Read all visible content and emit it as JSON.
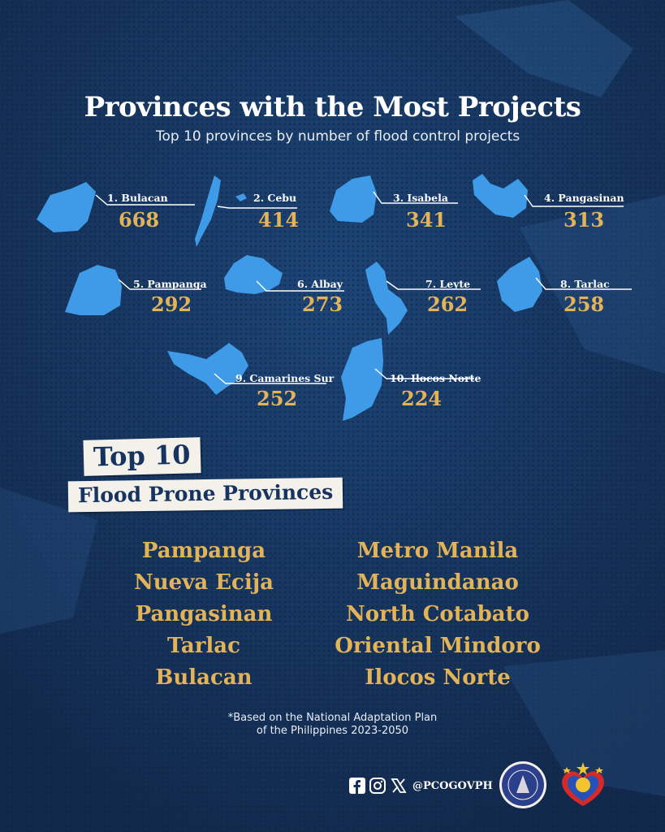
{
  "title": "Provinces with the Most Projects",
  "subtitle": "Top 10 provinces by number of flood control projects",
  "provinces": [
    {
      "label": "1. Bulacan",
      "count": "668"
    },
    {
      "label": "2. Cebu",
      "count": "414"
    },
    {
      "label": "3. Isabela",
      "count": "341"
    },
    {
      "label": "4. Pangasinan",
      "count": "313"
    },
    {
      "label": "5. Pampanga",
      "count": "292"
    },
    {
      "label": "6. Albay",
      "count": "273"
    },
    {
      "label": "7. Leyte",
      "count": "262"
    },
    {
      "label": "8. Tarlac",
      "count": "258"
    },
    {
      "label": "9. Camarines Sur",
      "count": "252"
    },
    {
      "label": "10. Ilocos Norte",
      "count": "224"
    }
  ],
  "flood_section": {
    "badge_line1": "Top 10",
    "badge_line2": "Flood Prone Provinces",
    "left_column": [
      "Pampanga",
      "Nueva Ecija",
      "Pangasinan",
      "Tarlac",
      "Bulacan"
    ],
    "right_column": [
      "Metro Manila",
      "Maguindanao",
      "North Cotabato",
      "Oriental Mindoro",
      "Ilocos Norte"
    ]
  },
  "note_line1": "*Based on the National Adaptation Plan",
  "note_line2": "of the Philippines 2023-2050",
  "footer": {
    "handle": "@PCOGOVPH",
    "icons": [
      "facebook-icon",
      "instagram-icon",
      "x-icon"
    ]
  },
  "colors": {
    "background": "#15315a",
    "map_shape": "#3f9be8",
    "count": "#e3b358",
    "badge": "#f4f1ea"
  }
}
